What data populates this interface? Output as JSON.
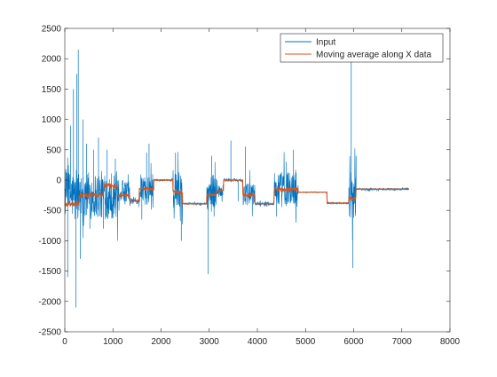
{
  "chart_data": {
    "type": "line",
    "title": "",
    "xlabel": "",
    "ylabel": "",
    "xlim": [
      0,
      8000
    ],
    "ylim": [
      -2500,
      2500
    ],
    "xticks": [
      0,
      1000,
      2000,
      3000,
      4000,
      5000,
      6000,
      7000,
      8000
    ],
    "yticks": [
      -2500,
      -2000,
      -1500,
      -1000,
      -500,
      0,
      500,
      1000,
      1500,
      2000,
      2500
    ],
    "grid": false,
    "legend": {
      "position": "top-right",
      "entries": [
        "Input",
        "Moving average along X data"
      ]
    },
    "series": [
      {
        "name": "Input",
        "color": "#0072BD",
        "segments": [
          {
            "x0": 0,
            "x1": 1100,
            "level": -250,
            "noise": 400
          },
          {
            "x0": 1100,
            "x1": 1350,
            "level": -180,
            "noise": 180
          },
          {
            "x0": 1350,
            "x1": 1550,
            "level": -350,
            "noise": 60
          },
          {
            "x0": 1550,
            "x1": 1850,
            "level": -150,
            "noise": 250
          },
          {
            "x0": 1850,
            "x1": 2250,
            "level": 0,
            "noise": 15
          },
          {
            "x0": 2250,
            "x1": 2450,
            "level": -150,
            "noise": 300
          },
          {
            "x0": 2450,
            "x1": 2950,
            "level": -390,
            "noise": 15
          },
          {
            "x0": 2950,
            "x1": 3150,
            "level": -200,
            "noise": 300
          },
          {
            "x0": 3150,
            "x1": 3300,
            "level": -180,
            "noise": 100
          },
          {
            "x0": 3300,
            "x1": 3700,
            "level": 0,
            "noise": 25
          },
          {
            "x0": 3700,
            "x1": 3950,
            "level": -250,
            "noise": 200
          },
          {
            "x0": 3950,
            "x1": 4350,
            "level": -390,
            "noise": 25
          },
          {
            "x0": 4350,
            "x1": 4850,
            "level": -150,
            "noise": 300
          },
          {
            "x0": 4850,
            "x1": 5450,
            "level": -200,
            "noise": 5
          },
          {
            "x0": 5450,
            "x1": 5900,
            "level": -380,
            "noise": 15
          },
          {
            "x0": 5900,
            "x1": 6050,
            "level": -250,
            "noise": 400
          },
          {
            "x0": 6050,
            "x1": 7150,
            "level": -150,
            "noise": 15
          }
        ],
        "spikes": [
          [
            60,
            -1600
          ],
          [
            120,
            900
          ],
          [
            180,
            1500
          ],
          [
            230,
            -2100
          ],
          [
            250,
            1750
          ],
          [
            280,
            2150
          ],
          [
            320,
            -1300
          ],
          [
            380,
            1000
          ],
          [
            450,
            600
          ],
          [
            520,
            -800
          ],
          [
            600,
            500
          ],
          [
            700,
            700
          ],
          [
            800,
            -800
          ],
          [
            880,
            500
          ],
          [
            950,
            -500
          ],
          [
            1050,
            350
          ],
          [
            1250,
            -400
          ],
          [
            1600,
            -650
          ],
          [
            1700,
            450
          ],
          [
            1750,
            600
          ],
          [
            1830,
            -450
          ],
          [
            2300,
            450
          ],
          [
            2420,
            -1000
          ],
          [
            2980,
            -1550
          ],
          [
            3050,
            400
          ],
          [
            3100,
            -600
          ],
          [
            3450,
            650
          ],
          [
            3600,
            -350
          ],
          [
            3750,
            550
          ],
          [
            4400,
            -600
          ],
          [
            4600,
            300
          ],
          [
            4750,
            500
          ],
          [
            4800,
            -700
          ],
          [
            5950,
            1950
          ],
          [
            5980,
            -1450
          ],
          [
            6050,
            400
          ]
        ]
      },
      {
        "name": "Moving average along X data",
        "color": "#D95319",
        "segments": [
          {
            "x0": 0,
            "x1": 300,
            "level": -400,
            "noise": 40
          },
          {
            "x0": 300,
            "x1": 800,
            "level": -250,
            "noise": 35
          },
          {
            "x0": 800,
            "x1": 1100,
            "level": -100,
            "noise": 40
          },
          {
            "x0": 1100,
            "x1": 1350,
            "level": -250,
            "noise": 20
          },
          {
            "x0": 1350,
            "x1": 1550,
            "level": -350,
            "noise": 10
          },
          {
            "x0": 1550,
            "x1": 1850,
            "level": -150,
            "noise": 20
          },
          {
            "x0": 1850,
            "x1": 2250,
            "level": 0,
            "noise": 5
          },
          {
            "x0": 2250,
            "x1": 2450,
            "level": -200,
            "noise": 30
          },
          {
            "x0": 2450,
            "x1": 2950,
            "level": -390,
            "noise": 5
          },
          {
            "x0": 2950,
            "x1": 3150,
            "level": -250,
            "noise": 20
          },
          {
            "x0": 3150,
            "x1": 3300,
            "level": -180,
            "noise": 10
          },
          {
            "x0": 3300,
            "x1": 3700,
            "level": 0,
            "noise": 5
          },
          {
            "x0": 3700,
            "x1": 3950,
            "level": -250,
            "noise": 20
          },
          {
            "x0": 3950,
            "x1": 4350,
            "level": -390,
            "noise": 5
          },
          {
            "x0": 4350,
            "x1": 4850,
            "level": -150,
            "noise": 30
          },
          {
            "x0": 4850,
            "x1": 5450,
            "level": -200,
            "noise": 2
          },
          {
            "x0": 5450,
            "x1": 5900,
            "level": -380,
            "noise": 5
          },
          {
            "x0": 5900,
            "x1": 6050,
            "level": -300,
            "noise": 30
          },
          {
            "x0": 6050,
            "x1": 7150,
            "level": -150,
            "noise": 5
          }
        ],
        "spikes": []
      }
    ]
  }
}
